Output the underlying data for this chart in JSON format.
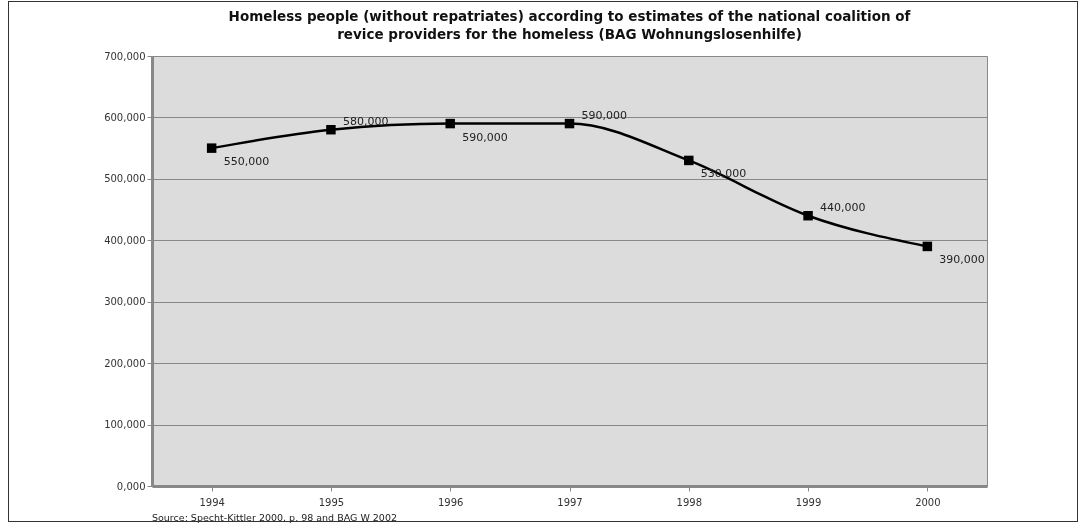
{
  "chart_data": {
    "type": "line",
    "title": "Homeless people (without repatriates) according to estimates of the national coalition of\nrevice providers for the homeless (BAG Wohnungslosenhilfe)",
    "categories": [
      "1994",
      "1995",
      "1996",
      "1997",
      "1998",
      "1999",
      "2000"
    ],
    "series": [
      {
        "color": "#000000",
        "values": [
          550000,
          580000,
          590000,
          590000,
          530000,
          440000,
          390000
        ],
        "value_labels": [
          "550,000",
          "580,000",
          "590,000",
          "590,000",
          "530,000",
          "440,000",
          "390,000"
        ]
      }
    ],
    "ylim": [
      0,
      700000
    ],
    "yticks": [
      {
        "value": 0,
        "label": "0,000"
      },
      {
        "value": 100000,
        "label": "100,000"
      },
      {
        "value": 200000,
        "label": "200,000"
      },
      {
        "value": 300000,
        "label": "300,000"
      },
      {
        "value": 400000,
        "label": "400,000"
      },
      {
        "value": 500000,
        "label": "500,000"
      },
      {
        "value": 600000,
        "label": "600,000"
      },
      {
        "value": 700000,
        "label": "700,000"
      }
    ],
    "grid": "y",
    "marker": "square",
    "line_style": "solid",
    "annotations": [
      "Source: Specht-Kittler 2000, p. 98 and BAG W 2002"
    ]
  }
}
